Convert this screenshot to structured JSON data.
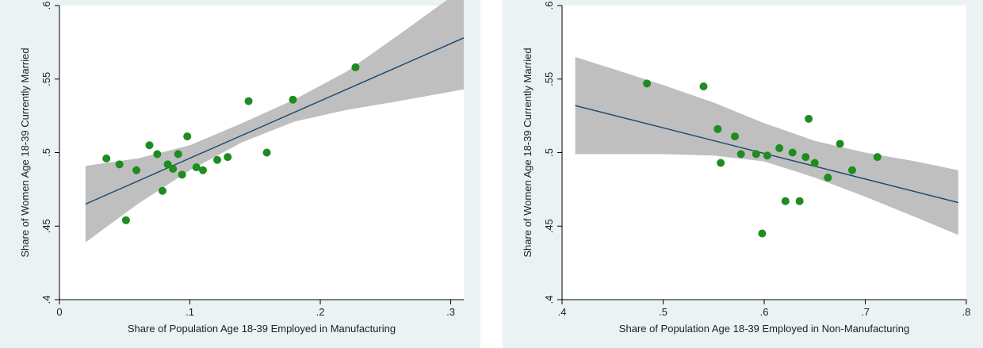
{
  "colors": {
    "frame_bg": "#eaf2f3",
    "plot_bg": "#ffffff",
    "band": "#bfbfbf",
    "fit_line": "#1a476f",
    "points": "#1e8c1e",
    "axis": "#000000"
  },
  "chart_data": [
    {
      "type": "scatter",
      "title": "",
      "xlabel": "Share of Population Age 18-39 Employed in Manufacturing",
      "ylabel": "Share of Women Age 18-39 Currently Married",
      "xlim": [
        0,
        0.31
      ],
      "ylim": [
        0.4,
        0.6
      ],
      "x_ticks": [
        0,
        0.1,
        0.2,
        0.3
      ],
      "x_tick_labels": [
        "0",
        ".1",
        ".2",
        ".3"
      ],
      "y_ticks": [
        0.4,
        0.45,
        0.5,
        0.55,
        0.6
      ],
      "y_tick_labels": [
        ".4",
        ".45",
        ".5",
        ".55",
        ".6"
      ],
      "grid": false,
      "points": [
        {
          "x": 0.036,
          "y": 0.496
        },
        {
          "x": 0.046,
          "y": 0.492
        },
        {
          "x": 0.051,
          "y": 0.454
        },
        {
          "x": 0.059,
          "y": 0.488
        },
        {
          "x": 0.069,
          "y": 0.505
        },
        {
          "x": 0.075,
          "y": 0.499
        },
        {
          "x": 0.079,
          "y": 0.474
        },
        {
          "x": 0.083,
          "y": 0.492
        },
        {
          "x": 0.087,
          "y": 0.489
        },
        {
          "x": 0.091,
          "y": 0.499
        },
        {
          "x": 0.094,
          "y": 0.485
        },
        {
          "x": 0.098,
          "y": 0.511
        },
        {
          "x": 0.105,
          "y": 0.49
        },
        {
          "x": 0.11,
          "y": 0.488
        },
        {
          "x": 0.121,
          "y": 0.495
        },
        {
          "x": 0.129,
          "y": 0.497
        },
        {
          "x": 0.145,
          "y": 0.535
        },
        {
          "x": 0.159,
          "y": 0.5
        },
        {
          "x": 0.179,
          "y": 0.536
        },
        {
          "x": 0.227,
          "y": 0.558
        }
      ],
      "fit": {
        "x": [
          0.02,
          0.31
        ],
        "y": [
          0.465,
          0.578
        ]
      },
      "band": {
        "x": [
          0.02,
          0.06,
          0.1,
          0.14,
          0.18,
          0.22,
          0.26,
          0.31
        ],
        "lower": [
          0.439,
          0.465,
          0.488,
          0.507,
          0.521,
          0.529,
          0.535,
          0.543
        ],
        "upper": [
          0.491,
          0.496,
          0.505,
          0.52,
          0.536,
          0.555,
          0.58,
          0.612
        ]
      }
    },
    {
      "type": "scatter",
      "title": "",
      "xlabel": "Share of Population Age 18-39 Employed in Non-Manufacturing",
      "ylabel": "Share of Women Age 18-39 Currently Married",
      "xlim": [
        0.4,
        0.8
      ],
      "ylim": [
        0.4,
        0.6
      ],
      "x_ticks": [
        0.4,
        0.5,
        0.6,
        0.7,
        0.8
      ],
      "x_tick_labels": [
        ".4",
        ".5",
        ".6",
        ".7",
        ".8"
      ],
      "y_ticks": [
        0.4,
        0.45,
        0.5,
        0.55,
        0.6
      ],
      "y_tick_labels": [
        ".4",
        ".45",
        ".5",
        ".55",
        ".6"
      ],
      "grid": false,
      "points": [
        {
          "x": 0.484,
          "y": 0.547
        },
        {
          "x": 0.54,
          "y": 0.545
        },
        {
          "x": 0.554,
          "y": 0.516
        },
        {
          "x": 0.557,
          "y": 0.493
        },
        {
          "x": 0.571,
          "y": 0.511
        },
        {
          "x": 0.577,
          "y": 0.499
        },
        {
          "x": 0.592,
          "y": 0.499
        },
        {
          "x": 0.598,
          "y": 0.445
        },
        {
          "x": 0.603,
          "y": 0.498
        },
        {
          "x": 0.615,
          "y": 0.503
        },
        {
          "x": 0.621,
          "y": 0.467
        },
        {
          "x": 0.628,
          "y": 0.5
        },
        {
          "x": 0.635,
          "y": 0.467
        },
        {
          "x": 0.641,
          "y": 0.497
        },
        {
          "x": 0.644,
          "y": 0.523
        },
        {
          "x": 0.65,
          "y": 0.493
        },
        {
          "x": 0.663,
          "y": 0.483
        },
        {
          "x": 0.675,
          "y": 0.506
        },
        {
          "x": 0.687,
          "y": 0.488
        },
        {
          "x": 0.712,
          "y": 0.497
        }
      ],
      "fit": {
        "x": [
          0.413,
          0.792
        ],
        "y": [
          0.532,
          0.466
        ]
      },
      "band": {
        "x": [
          0.413,
          0.45,
          0.5,
          0.55,
          0.6,
          0.65,
          0.7,
          0.75,
          0.792
        ],
        "lower": [
          0.499,
          0.499,
          0.499,
          0.498,
          0.494,
          0.483,
          0.47,
          0.456,
          0.444
        ],
        "upper": [
          0.565,
          0.557,
          0.546,
          0.534,
          0.52,
          0.508,
          0.5,
          0.494,
          0.488
        ]
      }
    }
  ]
}
